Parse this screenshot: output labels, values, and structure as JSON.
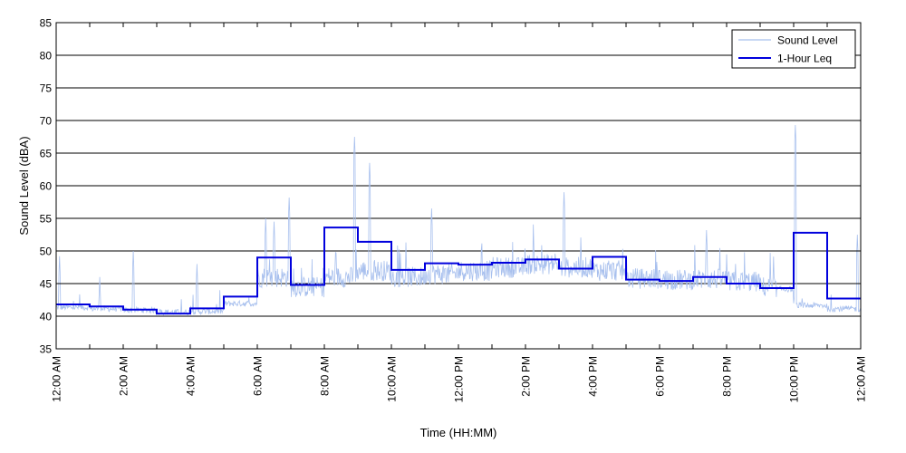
{
  "chart_data": {
    "type": "line",
    "xlabel": "Time (HH:MM)",
    "ylabel": "Sound Level (dBA)",
    "ylim": [
      35,
      85
    ],
    "y_ticks": [
      35,
      40,
      45,
      50,
      55,
      60,
      65,
      70,
      75,
      80,
      85
    ],
    "xlim_hours": [
      0,
      24
    ],
    "x_ticks": [
      {
        "hour": 0,
        "label": "12:00 AM"
      },
      {
        "hour": 2,
        "label": "2:00 AM"
      },
      {
        "hour": 4,
        "label": "4:00 AM"
      },
      {
        "hour": 6,
        "label": "6:00 AM"
      },
      {
        "hour": 8,
        "label": "8:00 AM"
      },
      {
        "hour": 10,
        "label": "10:00 AM"
      },
      {
        "hour": 12,
        "label": "12:00 PM"
      },
      {
        "hour": 14,
        "label": "2:00 PM"
      },
      {
        "hour": 16,
        "label": "4:00 PM"
      },
      {
        "hour": 18,
        "label": "6:00 PM"
      },
      {
        "hour": 20,
        "label": "8:00 PM"
      },
      {
        "hour": 22,
        "label": "10:00 PM"
      },
      {
        "hour": 24,
        "label": "12:00 AM"
      }
    ],
    "grid": "horizontal",
    "legend_position": "top-right",
    "series": [
      {
        "name": "Sound Level",
        "color": "#a8c0ee",
        "hourly_base": [
          41.2,
          41.0,
          40.8,
          40.5,
          40.6,
          41.8,
          45.5,
          44.0,
          45.5,
          46.5,
          45.5,
          46.0,
          46.5,
          47.0,
          47.5,
          47.0,
          46.5,
          45.3,
          45.1,
          45.2,
          44.8,
          44.0,
          41.5,
          41.0
        ],
        "peaks": [
          {
            "hour": 0.1,
            "value": 49.2
          },
          {
            "hour": 1.3,
            "value": 46.0
          },
          {
            "hour": 2.3,
            "value": 50.0
          },
          {
            "hour": 4.2,
            "value": 48.0
          },
          {
            "hour": 6.25,
            "value": 55.0
          },
          {
            "hour": 6.5,
            "value": 54.5
          },
          {
            "hour": 6.95,
            "value": 58.2
          },
          {
            "hour": 8.9,
            "value": 67.5
          },
          {
            "hour": 9.35,
            "value": 63.5
          },
          {
            "hour": 11.2,
            "value": 56.5
          },
          {
            "hour": 15.15,
            "value": 59.0
          },
          {
            "hour": 19.4,
            "value": 53.2
          },
          {
            "hour": 22.05,
            "value": 69.3
          },
          {
            "hour": 23.9,
            "value": 52.5
          }
        ]
      },
      {
        "name": "1-Hour Leq",
        "color": "#0000dd",
        "type": "step",
        "hours": [
          0,
          1,
          2,
          3,
          4,
          5,
          6,
          7,
          8,
          9,
          10,
          11,
          12,
          13,
          14,
          15,
          16,
          17,
          18,
          19,
          20,
          21,
          22,
          23
        ],
        "values": [
          41.8,
          41.5,
          41.0,
          40.4,
          41.2,
          43.0,
          49.0,
          44.8,
          53.6,
          51.4,
          47.1,
          48.1,
          47.9,
          48.2,
          48.7,
          47.3,
          49.1,
          45.6,
          45.4,
          46.0,
          45.0,
          44.3,
          52.8,
          42.7
        ]
      }
    ]
  }
}
